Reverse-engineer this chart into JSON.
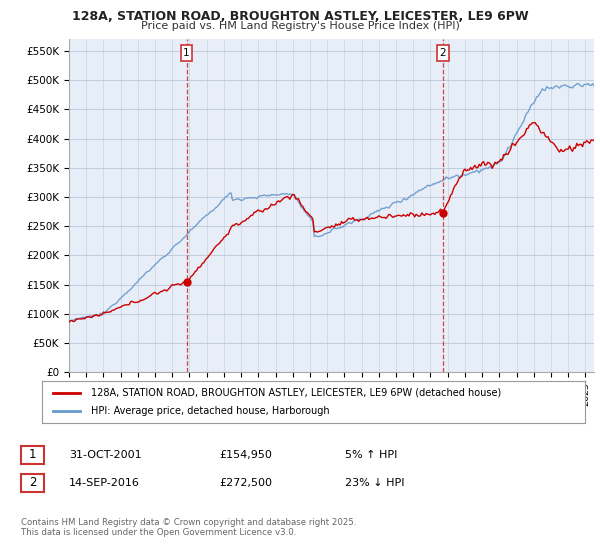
{
  "title": "128A, STATION ROAD, BROUGHTON ASTLEY, LEICESTER, LE9 6PW",
  "subtitle": "Price paid vs. HM Land Registry's House Price Index (HPI)",
  "ylabel_ticks": [
    "£0",
    "£50K",
    "£100K",
    "£150K",
    "£200K",
    "£250K",
    "£300K",
    "£350K",
    "£400K",
    "£450K",
    "£500K",
    "£550K"
  ],
  "ylim": [
    0,
    570000
  ],
  "xlim_start": 1995.0,
  "xlim_end": 2025.5,
  "legend_property": "128A, STATION ROAD, BROUGHTON ASTLEY, LEICESTER, LE9 6PW (detached house)",
  "legend_hpi": "HPI: Average price, detached house, Harborough",
  "transaction1_date": "31-OCT-2001",
  "transaction1_price": "£154,950",
  "transaction1_hpi": "5% ↑ HPI",
  "transaction1_year": 2001.83,
  "transaction1_value": 154950,
  "transaction2_date": "14-SEP-2016",
  "transaction2_price": "£272,500",
  "transaction2_hpi": "23% ↓ HPI",
  "transaction2_year": 2016.71,
  "transaction2_value": 272500,
  "footnote": "Contains HM Land Registry data © Crown copyright and database right 2025.\nThis data is licensed under the Open Government Licence v3.0.",
  "line_color_property": "#cc0000",
  "line_color_hpi": "#6699cc",
  "marker_color_property": "#cc0000",
  "plot_bg_color": "#e8eef8",
  "background_color": "#ffffff",
  "grid_color": "#c0ccdd",
  "vline_color": "#cc3333",
  "box_color": "#cc3333",
  "title_fontsize": 9,
  "subtitle_fontsize": 8
}
